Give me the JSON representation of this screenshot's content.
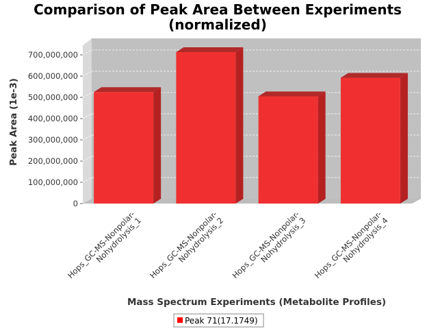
{
  "chart_data": {
    "type": "bar",
    "title": "Comparison of Peak Area Between Experiments",
    "subtitle": "(normalized)",
    "xlabel": "Mass Spectrum Experiments (Metabolite Profiles)",
    "ylabel": "Peak Area (1e-3)",
    "ylim": [
      0,
      750000000
    ],
    "yticks": [
      0,
      100000000,
      200000000,
      300000000,
      400000000,
      500000000,
      600000000,
      700000000
    ],
    "ytick_labels": [
      "0",
      "100,000,000",
      "200,000,000",
      "300,000,000",
      "400,000,000",
      "500,000,000",
      "600,000,000",
      "700,000,000"
    ],
    "categories": [
      [
        "Hops_GC-MS-Nonpolar-",
        "Nohydrolysis_1"
      ],
      [
        "Hops_GC-MS-Nonpolar-",
        "Nohydrolysis_2"
      ],
      [
        "Hops_GC-MS-Nonpolar-",
        "Nohydrolysis_3"
      ],
      [
        "Hops_GC-MS-Nonpolar-",
        "Nohydrolysis_4"
      ]
    ],
    "series": [
      {
        "name": "Peak 71(17.1749)",
        "color": "#ff0000",
        "values": [
          525000000,
          713000000,
          505000000,
          592000000
        ]
      }
    ],
    "grid": true,
    "style": "3d",
    "legend_position": "bottom"
  }
}
